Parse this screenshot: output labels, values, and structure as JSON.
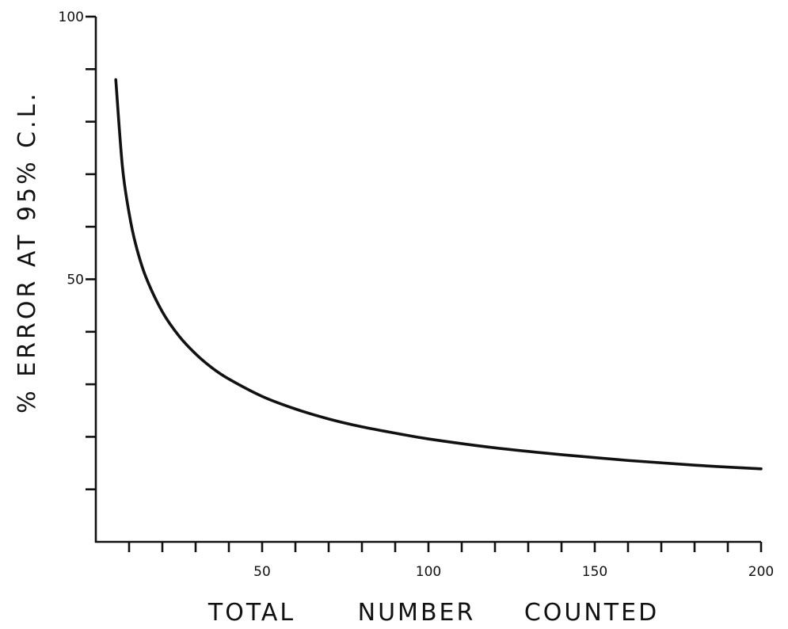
{
  "chart_data": {
    "type": "line",
    "xlabel_words": [
      "TOTAL",
      "NUMBER",
      "COUNTED"
    ],
    "ylabel": "% ERROR AT 95% C.L.",
    "xlim": [
      0,
      200
    ],
    "ylim": [
      0,
      100
    ],
    "x_tick_values": [
      10,
      20,
      30,
      40,
      50,
      60,
      70,
      80,
      90,
      100,
      110,
      120,
      130,
      140,
      150,
      160,
      170,
      180,
      190,
      200
    ],
    "x_tick_labels": [
      {
        "value": 50,
        "label": "50"
      },
      {
        "value": 100,
        "label": "100"
      },
      {
        "value": 150,
        "label": "150"
      },
      {
        "value": 200,
        "label": "200"
      }
    ],
    "y_tick_values": [
      10,
      20,
      30,
      40,
      50,
      60,
      70,
      80,
      90,
      100
    ],
    "y_tick_labels": [
      {
        "value": 50,
        "label": "50"
      },
      {
        "value": 100,
        "label": "100"
      }
    ],
    "grid": false,
    "legend": "none",
    "series": [
      {
        "x": [
          6,
          8,
          10,
          12,
          15,
          20,
          25,
          30,
          35,
          40,
          50,
          60,
          70,
          80,
          90,
          100,
          120,
          140,
          160,
          180,
          200
        ],
        "y": [
          88,
          71.4,
          62.6,
          56.6,
          50.5,
          43.8,
          39.2,
          35.8,
          33.1,
          31.0,
          27.7,
          25.3,
          23.4,
          21.9,
          20.7,
          19.6,
          17.9,
          16.6,
          15.5,
          14.6,
          13.9
        ]
      }
    ]
  }
}
